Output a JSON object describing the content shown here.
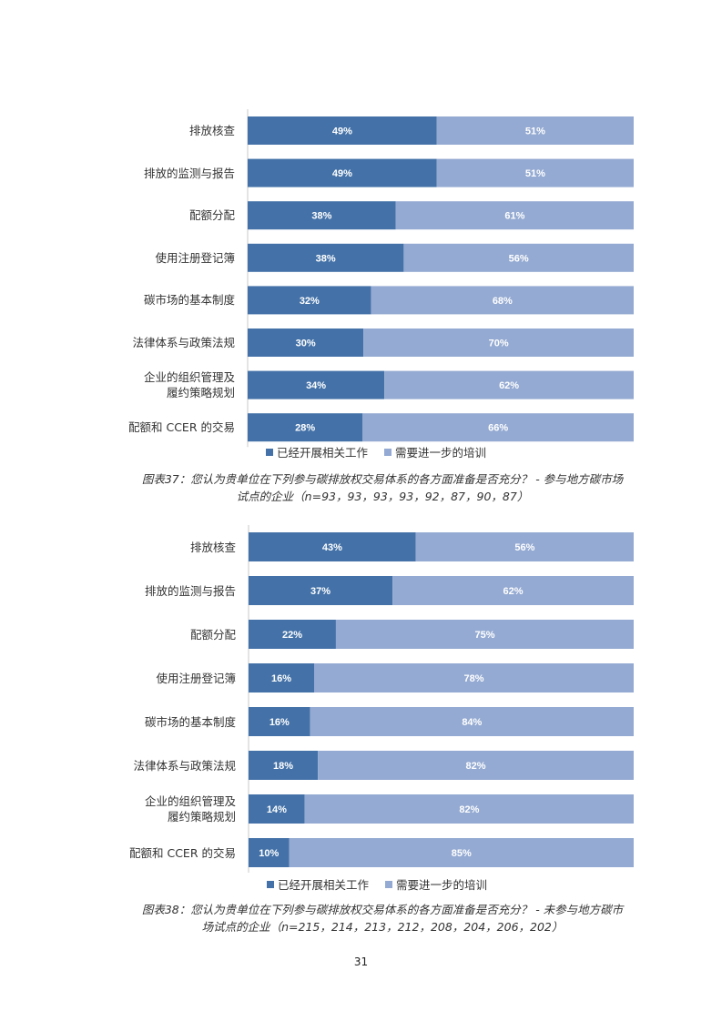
{
  "colors": {
    "completed": "#4472a8",
    "training": "#94aad2",
    "axis": "#c8c8c8"
  },
  "chart_data": [
    {
      "type": "bar",
      "orientation": "horizontal",
      "stacked": true,
      "categories": [
        "排放核查",
        "排放的监测与报告",
        "配额分配",
        "使用注册登记簿",
        "碳市场的基本制度",
        "法律体系与政策法规",
        "企业的组织管理及履约策略规划",
        "配额和 CCER 的交易"
      ],
      "category_lines": [
        [
          "排放核查"
        ],
        [
          "排放的监测与报告"
        ],
        [
          "配额分配"
        ],
        [
          "使用注册登记簿"
        ],
        [
          "碳市场的基本制度"
        ],
        [
          "法律体系与政策法规"
        ],
        [
          "企业的组织管理及",
          "履约策略规划"
        ],
        [
          "配额和 CCER 的交易"
        ]
      ],
      "series": [
        {
          "name": "已经开展相关工作",
          "values": [
            49,
            49,
            38,
            38,
            32,
            30,
            34,
            28
          ],
          "labels": [
            "49%",
            "49%",
            "38%",
            "38%",
            "32%",
            "30%",
            "34%",
            "28%"
          ]
        },
        {
          "name": "需要进一步的培训",
          "values": [
            51,
            51,
            61,
            56,
            68,
            70,
            62,
            66
          ],
          "labels": [
            "51%",
            "51%",
            "61%",
            "56%",
            "68%",
            "70%",
            "62%",
            "66%"
          ]
        }
      ],
      "caption": [
        "图表37：您认为贵单位在下列参与碳排放权交易体系的各方面准备是否充分？ - 参与地方碳市场",
        "试点的企业（n=93，93，93，93，92，87，90，87）"
      ]
    },
    {
      "type": "bar",
      "orientation": "horizontal",
      "stacked": true,
      "categories": [
        "排放核查",
        "排放的监测与报告",
        "配额分配",
        "使用注册登记簿",
        "碳市场的基本制度",
        "法律体系与政策法规",
        "企业的组织管理及履约策略规划",
        "配额和 CCER 的交易"
      ],
      "category_lines": [
        [
          "排放核查"
        ],
        [
          "排放的监测与报告"
        ],
        [
          "配额分配"
        ],
        [
          "使用注册登记簿"
        ],
        [
          "碳市场的基本制度"
        ],
        [
          "法律体系与政策法规"
        ],
        [
          "企业的组织管理及",
          "履约策略规划"
        ],
        [
          "配额和 CCER 的交易"
        ]
      ],
      "series": [
        {
          "name": "已经开展相关工作",
          "values": [
            43,
            37,
            22,
            16,
            16,
            18,
            14,
            10
          ],
          "labels": [
            "43%",
            "37%",
            "22%",
            "16%",
            "16%",
            "18%",
            "14%",
            "10%"
          ]
        },
        {
          "name": "需要进一步的培训",
          "values": [
            56,
            62,
            75,
            78,
            84,
            82,
            82,
            85
          ],
          "labels": [
            "56%",
            "62%",
            "75%",
            "78%",
            "84%",
            "82%",
            "82%",
            "85%"
          ]
        }
      ],
      "caption": [
        "图表38：您认为贵单位在下列参与碳排放权交易体系的各方面准备是否充分？ - 未参与地方碳市",
        "场试点的企业（n=215，214，213，212，208，204，206，202）"
      ]
    }
  ],
  "page_number": "31"
}
